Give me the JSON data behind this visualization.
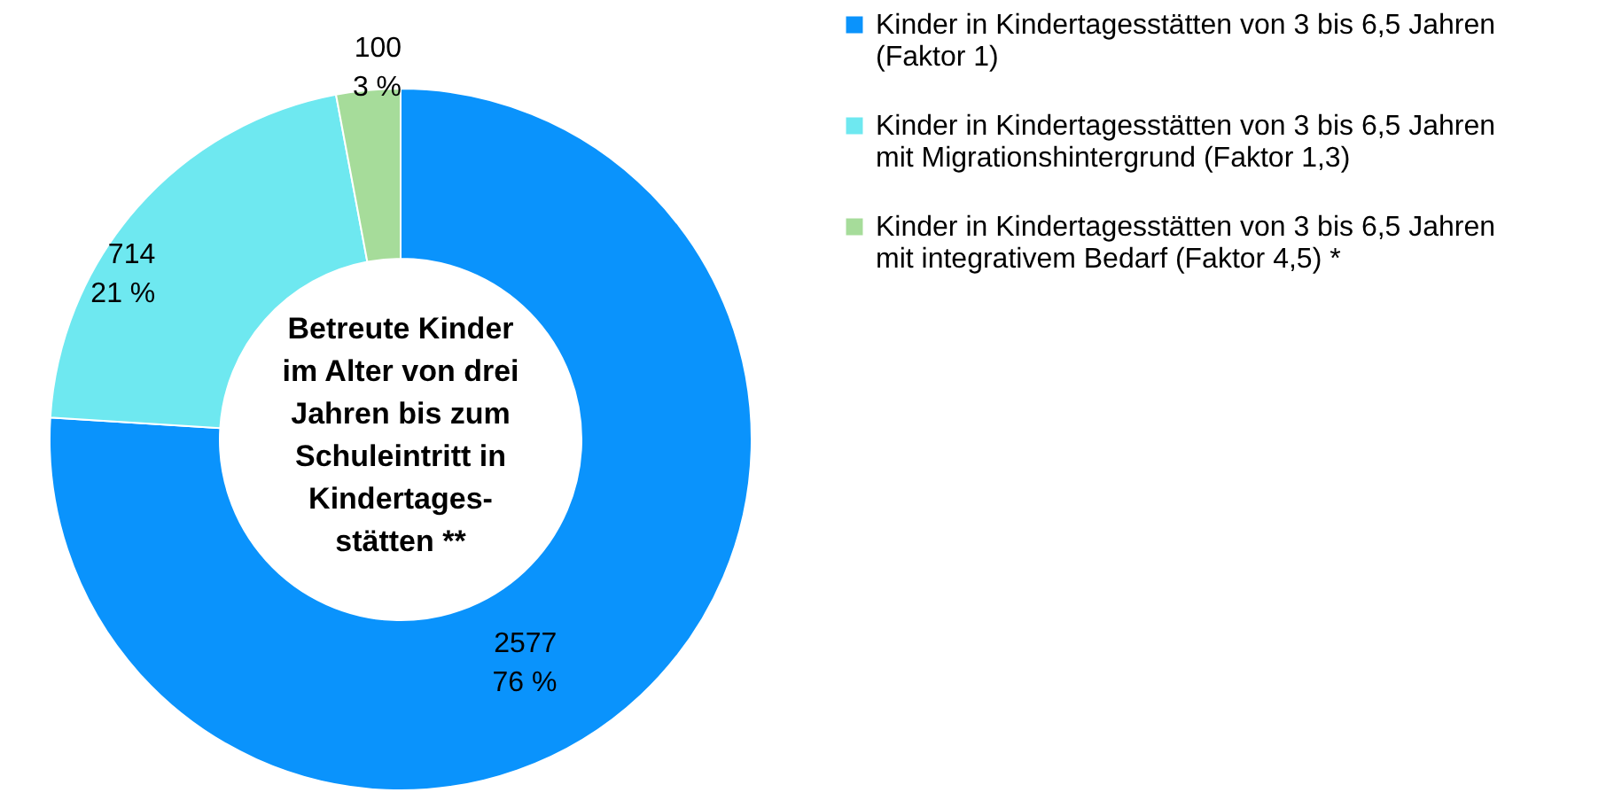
{
  "chart_data": {
    "type": "donut",
    "title": "Betreute Kinder\nim Alter von drei\nJahren bis zum\nSchuleintritt in\nKindertages-\nstätten **",
    "categories": [
      "Kinder in Kindertagesstätten von 3 bis 6,5 Jahren (Faktor 1)",
      "Kinder in Kindertagesstätten von 3 bis 6,5 Jahren mit Migrationshintergrund (Faktor 1,3)",
      "Kinder in Kindertagesstätten von 3 bis 6,5 Jahren mit integrativem Bedarf (Faktor 4,5) *"
    ],
    "values": [
      2577,
      714,
      100
    ],
    "colors": [
      "#0a93fc",
      "#6ee8f0",
      "#a6dc9a"
    ],
    "value_labels": [
      "2577\n76 %",
      "714\n21 %",
      "100\n3 %"
    ],
    "legend": "right"
  }
}
